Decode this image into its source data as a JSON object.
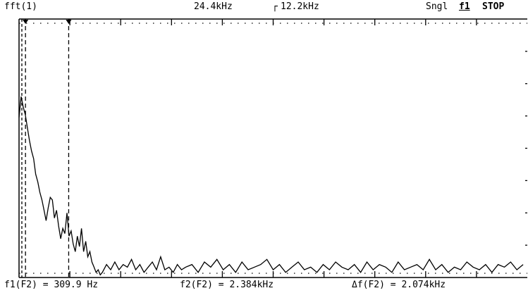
{
  "header": {
    "source": "fft(1)",
    "span": "24.4kHz",
    "center": "12.2kHz",
    "center_marker_glyph": "┌",
    "mode": "Sngl",
    "trigger_icon": "f1",
    "run_state": "STOP"
  },
  "footer": {
    "f1_readout": "f1(F2) = 309.9 Hz",
    "f2_readout": "f2(F2) = 2.384kHz",
    "delta_readout": "Δf(F2) = 2.074kHz"
  },
  "colors": {
    "trace": "#000000",
    "background": "#ffffff",
    "grid": "#000000"
  },
  "chart_data": {
    "type": "line",
    "x_unit": "Hz",
    "xlim": [
      0,
      24400
    ],
    "ylim": [
      0,
      1
    ],
    "grid": "dotted-border",
    "cursors": [
      {
        "name": "f1",
        "x": 309.9
      },
      {
        "name": "f2",
        "x": 2384
      }
    ],
    "series": [
      {
        "x": [
          0,
          100,
          200,
          300,
          400,
          500,
          600,
          700,
          800,
          900,
          1000,
          1100,
          1200,
          1300,
          1400,
          1500,
          1600,
          1700,
          1800,
          1900,
          2000,
          2100,
          2200,
          2300,
          2400,
          2500,
          2600,
          2700,
          2800,
          2900,
          3000,
          3100,
          3200,
          3300,
          3400,
          3500,
          3600,
          3700,
          3800,
          3900,
          4000,
          4200,
          4400,
          4600,
          4800,
          5000,
          5200,
          5400,
          5600,
          5800,
          6000,
          6200,
          6400,
          6600,
          6800,
          7000,
          7200,
          7400,
          7600,
          7800,
          8000,
          8300,
          8600,
          8900,
          9200,
          9500,
          9800,
          10100,
          10400,
          10700,
          11000,
          11300,
          11600,
          11900,
          12200,
          12500,
          12800,
          13100,
          13400,
          13700,
          14000,
          14300,
          14600,
          14900,
          15200,
          15500,
          15800,
          16100,
          16400,
          16700,
          17000,
          17300,
          17600,
          17900,
          18200,
          18500,
          18800,
          19100,
          19400,
          19700,
          20000,
          20300,
          20600,
          20900,
          21200,
          21500,
          21800,
          22100,
          22400,
          22700,
          23000,
          23300,
          23600,
          23900,
          24200
        ],
        "values": [
          0.62,
          0.7,
          0.66,
          0.63,
          0.58,
          0.53,
          0.49,
          0.46,
          0.4,
          0.37,
          0.33,
          0.3,
          0.26,
          0.22,
          0.27,
          0.31,
          0.3,
          0.23,
          0.26,
          0.2,
          0.15,
          0.19,
          0.17,
          0.25,
          0.16,
          0.18,
          0.13,
          0.1,
          0.16,
          0.12,
          0.19,
          0.1,
          0.14,
          0.08,
          0.1,
          0.06,
          0.04,
          0.02,
          0.03,
          0.01,
          0.02,
          0.05,
          0.03,
          0.06,
          0.03,
          0.05,
          0.04,
          0.07,
          0.03,
          0.05,
          0.02,
          0.04,
          0.06,
          0.03,
          0.08,
          0.03,
          0.04,
          0.02,
          0.05,
          0.03,
          0.04,
          0.05,
          0.02,
          0.06,
          0.04,
          0.07,
          0.03,
          0.05,
          0.02,
          0.06,
          0.03,
          0.04,
          0.05,
          0.07,
          0.03,
          0.05,
          0.02,
          0.04,
          0.06,
          0.03,
          0.04,
          0.02,
          0.05,
          0.03,
          0.06,
          0.04,
          0.03,
          0.05,
          0.02,
          0.06,
          0.03,
          0.05,
          0.04,
          0.02,
          0.06,
          0.03,
          0.04,
          0.05,
          0.03,
          0.07,
          0.03,
          0.05,
          0.02,
          0.04,
          0.03,
          0.06,
          0.04,
          0.03,
          0.05,
          0.02,
          0.05,
          0.04,
          0.06,
          0.03,
          0.05
        ]
      }
    ]
  }
}
